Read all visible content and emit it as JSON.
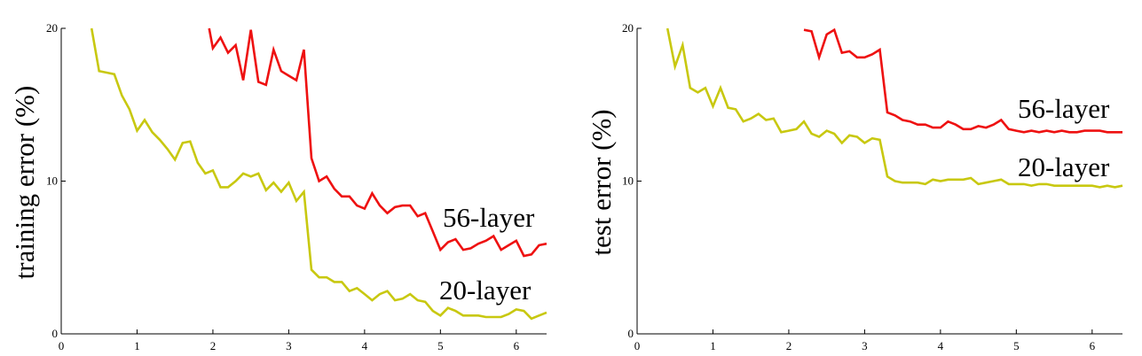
{
  "chart_data": [
    {
      "type": "line",
      "title": "",
      "xlabel": "",
      "ylabel": "training error (%)",
      "xlim": [
        0,
        6.4
      ],
      "ylim": [
        0,
        20
      ],
      "xticks": [
        "0",
        "1",
        "2",
        "3",
        "4",
        "5",
        "6"
      ],
      "yticks": [
        "0",
        "10",
        "20"
      ],
      "grid": false,
      "legend": "none",
      "series": [
        {
          "name": "56-layer",
          "color": "#ee1111",
          "x": [
            1.95,
            2.0,
            2.1,
            2.2,
            2.3,
            2.4,
            2.5,
            2.6,
            2.7,
            2.8,
            2.9,
            3.0,
            3.1,
            3.2,
            3.3,
            3.4,
            3.5,
            3.6,
            3.7,
            3.8,
            3.9,
            4.0,
            4.1,
            4.2,
            4.3,
            4.4,
            4.5,
            4.6,
            4.7,
            4.8,
            4.9,
            5.0,
            5.1,
            5.2,
            5.3,
            5.4,
            5.5,
            5.6,
            5.7,
            5.8,
            5.9,
            6.0,
            6.1,
            6.2,
            6.3,
            6.4
          ],
          "y": [
            20.0,
            18.7,
            19.4,
            18.4,
            18.9,
            16.6,
            19.9,
            16.5,
            16.3,
            18.6,
            17.2,
            16.9,
            16.6,
            18.6,
            11.5,
            10.0,
            10.3,
            9.5,
            9.0,
            9.0,
            8.4,
            8.2,
            9.2,
            8.4,
            7.9,
            8.3,
            8.4,
            8.4,
            7.7,
            7.9,
            6.7,
            5.5,
            6.0,
            6.2,
            5.5,
            5.6,
            5.9,
            6.1,
            6.4,
            5.5,
            5.8,
            6.1,
            5.1,
            5.2,
            5.8,
            5.9
          ]
        },
        {
          "name": "20-layer",
          "color": "#c8c810",
          "x": [
            0.4,
            0.5,
            0.6,
            0.7,
            0.8,
            0.9,
            1.0,
            1.1,
            1.2,
            1.3,
            1.4,
            1.5,
            1.6,
            1.7,
            1.8,
            1.9,
            2.0,
            2.1,
            2.2,
            2.3,
            2.4,
            2.5,
            2.6,
            2.7,
            2.8,
            2.9,
            3.0,
            3.1,
            3.2,
            3.3,
            3.4,
            3.5,
            3.6,
            3.7,
            3.8,
            3.9,
            4.0,
            4.1,
            4.2,
            4.3,
            4.4,
            4.5,
            4.6,
            4.7,
            4.8,
            4.9,
            5.0,
            5.1,
            5.2,
            5.3,
            5.4,
            5.5,
            5.6,
            5.7,
            5.8,
            5.9,
            6.0,
            6.1,
            6.2,
            6.3,
            6.4
          ],
          "y": [
            20.0,
            17.2,
            17.1,
            17.0,
            15.6,
            14.7,
            13.3,
            14.0,
            13.2,
            12.7,
            12.1,
            11.4,
            12.5,
            12.6,
            11.2,
            10.5,
            10.7,
            9.6,
            9.6,
            10.0,
            10.5,
            10.3,
            10.5,
            9.4,
            9.9,
            9.3,
            9.9,
            8.7,
            9.3,
            4.2,
            3.7,
            3.7,
            3.4,
            3.4,
            2.8,
            3.0,
            2.6,
            2.2,
            2.6,
            2.8,
            2.2,
            2.3,
            2.6,
            2.2,
            2.1,
            1.5,
            1.2,
            1.7,
            1.5,
            1.2,
            1.2,
            1.2,
            1.1,
            1.1,
            1.1,
            1.3,
            1.6,
            1.5,
            1.0,
            1.2,
            1.4
          ]
        }
      ],
      "annotations": [
        {
          "text": "56-layer",
          "series": "56-layer"
        },
        {
          "text": "20-layer",
          "series": "20-layer"
        }
      ]
    },
    {
      "type": "line",
      "title": "",
      "xlabel": "",
      "ylabel": "test error (%)",
      "xlim": [
        0,
        6.4
      ],
      "ylim": [
        0,
        20
      ],
      "xticks": [
        "0",
        "1",
        "2",
        "3",
        "4",
        "5",
        "6"
      ],
      "yticks": [
        "0",
        "10",
        "20"
      ],
      "grid": false,
      "legend": "none",
      "series": [
        {
          "name": "56-layer",
          "color": "#ee1111",
          "x": [
            2.2,
            2.3,
            2.4,
            2.5,
            2.6,
            2.7,
            2.8,
            2.9,
            3.0,
            3.1,
            3.2,
            3.3,
            3.4,
            3.5,
            3.6,
            3.7,
            3.8,
            3.9,
            4.0,
            4.1,
            4.2,
            4.3,
            4.4,
            4.5,
            4.6,
            4.7,
            4.8,
            4.9,
            5.0,
            5.1,
            5.2,
            5.3,
            5.4,
            5.5,
            5.6,
            5.7,
            5.8,
            5.9,
            6.0,
            6.1,
            6.2,
            6.3,
            6.4
          ],
          "y": [
            19.9,
            19.8,
            18.1,
            19.6,
            19.9,
            18.4,
            18.5,
            18.1,
            18.1,
            18.3,
            18.6,
            14.5,
            14.3,
            14.0,
            13.9,
            13.7,
            13.7,
            13.5,
            13.5,
            13.9,
            13.7,
            13.4,
            13.4,
            13.6,
            13.5,
            13.7,
            14.0,
            13.4,
            13.3,
            13.2,
            13.3,
            13.2,
            13.3,
            13.2,
            13.3,
            13.2,
            13.2,
            13.3,
            13.3,
            13.3,
            13.2,
            13.2,
            13.2
          ]
        },
        {
          "name": "20-layer",
          "color": "#c8c810",
          "x": [
            0.4,
            0.5,
            0.6,
            0.7,
            0.8,
            0.9,
            1.0,
            1.1,
            1.2,
            1.3,
            1.4,
            1.5,
            1.6,
            1.7,
            1.8,
            1.9,
            2.0,
            2.1,
            2.2,
            2.3,
            2.4,
            2.5,
            2.6,
            2.7,
            2.8,
            2.9,
            3.0,
            3.1,
            3.2,
            3.3,
            3.4,
            3.5,
            3.6,
            3.7,
            3.8,
            3.9,
            4.0,
            4.1,
            4.2,
            4.3,
            4.4,
            4.5,
            4.6,
            4.7,
            4.8,
            4.9,
            5.0,
            5.1,
            5.2,
            5.3,
            5.4,
            5.5,
            5.6,
            5.7,
            5.8,
            5.9,
            6.0,
            6.1,
            6.2,
            6.3,
            6.4
          ],
          "y": [
            20.0,
            17.5,
            18.9,
            16.1,
            15.8,
            16.1,
            14.9,
            16.1,
            14.8,
            14.7,
            13.9,
            14.1,
            14.4,
            14.0,
            14.1,
            13.2,
            13.3,
            13.4,
            13.9,
            13.1,
            12.9,
            13.3,
            13.1,
            12.5,
            13.0,
            12.9,
            12.5,
            12.8,
            12.7,
            10.3,
            10.0,
            9.9,
            9.9,
            9.9,
            9.8,
            10.1,
            10.0,
            10.1,
            10.1,
            10.1,
            10.2,
            9.8,
            9.9,
            10.0,
            10.1,
            9.8,
            9.8,
            9.8,
            9.7,
            9.8,
            9.8,
            9.7,
            9.7,
            9.7,
            9.7,
            9.7,
            9.7,
            9.6,
            9.7,
            9.6,
            9.7
          ]
        }
      ],
      "annotations": [
        {
          "text": "56-layer",
          "series": "56-layer"
        },
        {
          "text": "20-layer",
          "series": "20-layer"
        }
      ]
    }
  ]
}
